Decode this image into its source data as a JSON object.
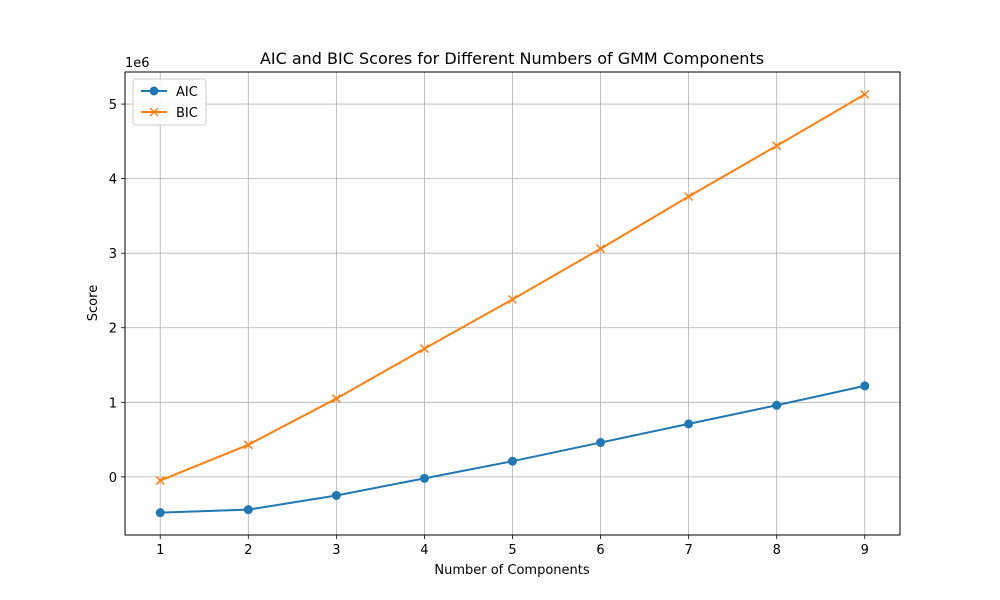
{
  "chart_data": {
    "type": "line",
    "title": "AIC and BIC Scores for Different Numbers of GMM Components",
    "xlabel": "Number of Components",
    "ylabel": "Score",
    "y_scale_label": "1e6",
    "x": [
      1,
      2,
      3,
      4,
      5,
      6,
      7,
      8,
      9
    ],
    "xticks": [
      "1",
      "2",
      "3",
      "4",
      "5",
      "6",
      "7",
      "8",
      "9"
    ],
    "yticks": [
      {
        "value": 0,
        "label": "0"
      },
      {
        "value": 1000000,
        "label": "1"
      },
      {
        "value": 2000000,
        "label": "2"
      },
      {
        "value": 3000000,
        "label": "3"
      },
      {
        "value": 4000000,
        "label": "4"
      },
      {
        "value": 5000000,
        "label": "5"
      }
    ],
    "xlim": [
      0.6,
      9.4
    ],
    "ylim": [
      -780000,
      5430000
    ],
    "grid": true,
    "legend_position": "top-left",
    "series": [
      {
        "name": "AIC",
        "color": "#1f77b4",
        "marker": "circle",
        "values": [
          -480000,
          -440000,
          -250000,
          -20000,
          210000,
          460000,
          710000,
          960000,
          1220000
        ]
      },
      {
        "name": "BIC",
        "color": "#ff7f0e",
        "marker": "x",
        "values": [
          -50000,
          430000,
          1050000,
          1720000,
          2380000,
          3060000,
          3760000,
          4440000,
          5130000
        ]
      }
    ]
  }
}
